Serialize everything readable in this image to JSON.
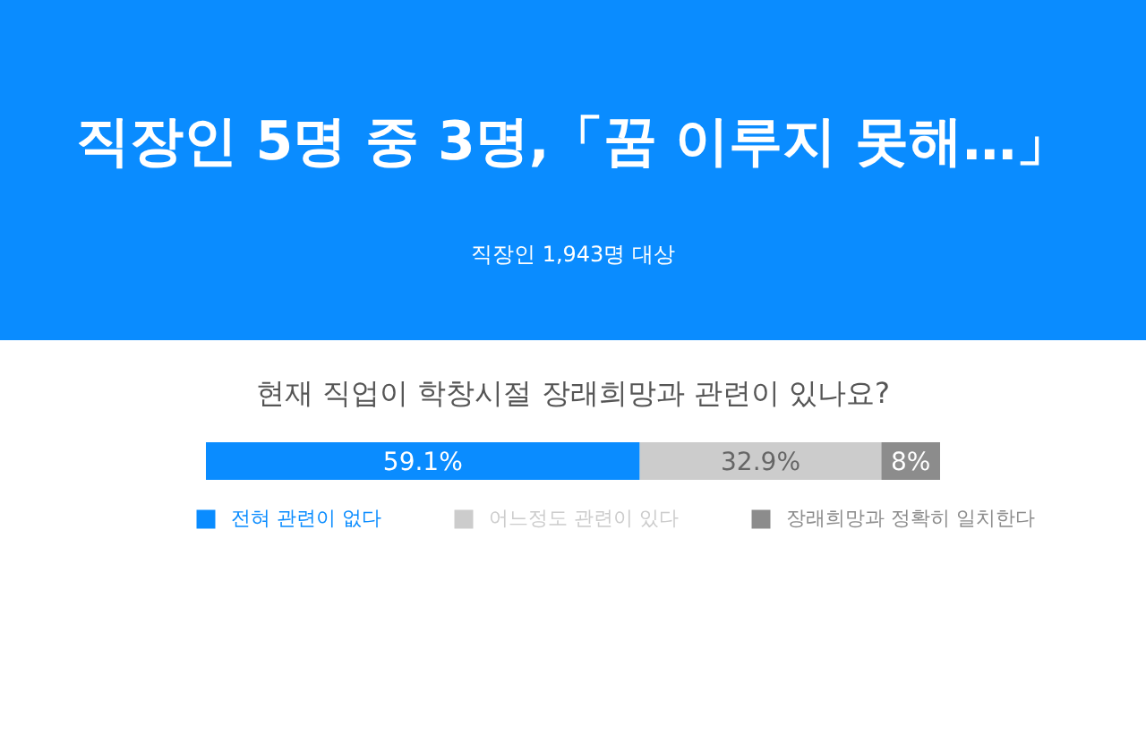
{
  "chart_data": {
    "type": "bar",
    "orientation": "horizontal",
    "stacked": true,
    "title": "직장인 5명 중 3명,「꿈 이루지 못해…」",
    "subtitle": "직장인 1,943명 대상",
    "annotations": [
      "현재 직업이 학창시절 장래희망과 관련이 있나요?"
    ],
    "categories": [
      null
    ],
    "series": [
      {
        "name": "전혀 관련이 없다",
        "color": "#0a8cff",
        "values": [
          59.1
        ],
        "value_labels": [
          "59.1%"
        ]
      },
      {
        "name": "어느정도 관련이 있다",
        "color": "#cccccc",
        "values": [
          32.9
        ],
        "value_labels": [
          "32.9%"
        ]
      },
      {
        "name": "장래희망과 정확히 일치한다",
        "color": "#8c8c8c",
        "values": [
          8
        ],
        "value_labels": [
          "8%"
        ]
      }
    ],
    "legend": "bottom"
  }
}
